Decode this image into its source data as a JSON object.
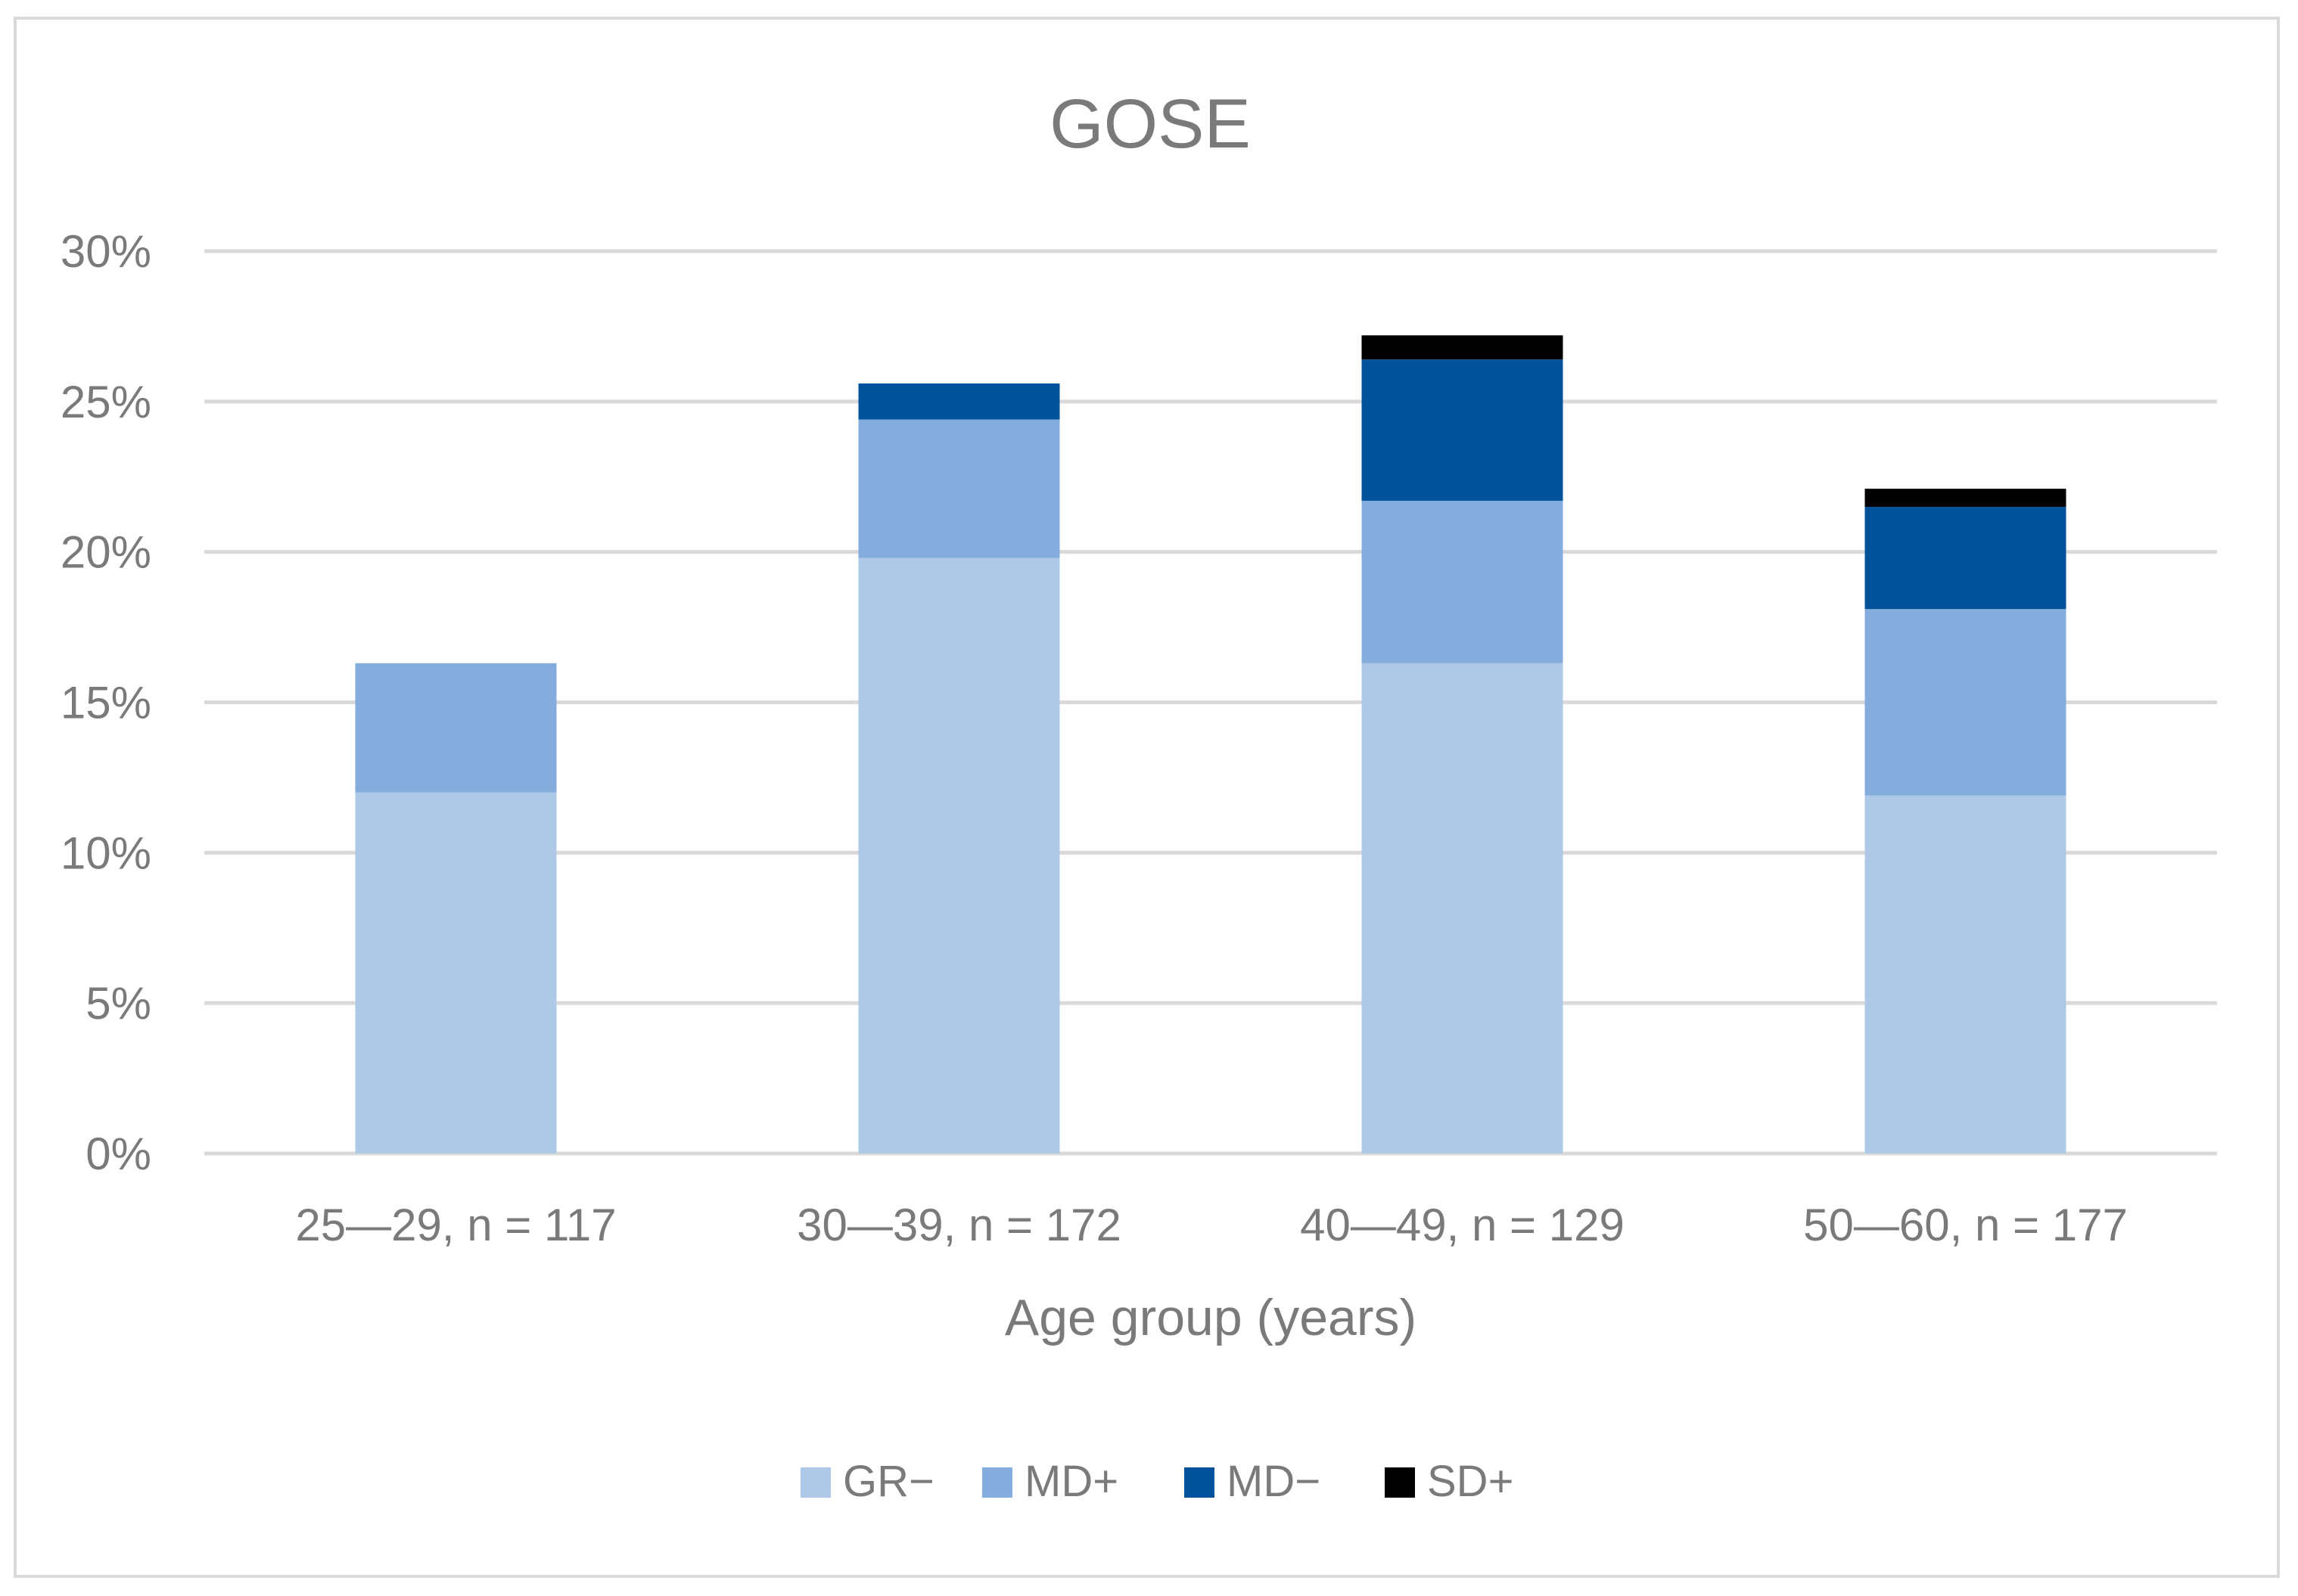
{
  "chart_data": {
    "type": "stacked-bar",
    "title": "GOSE",
    "xlabel": "Age group (years)",
    "ylabel": "",
    "ylim": [
      0,
      30
    ],
    "yticks": [
      0,
      5,
      10,
      15,
      20,
      25,
      30
    ],
    "ytick_labels": [
      "0%",
      "5%",
      "10%",
      "15%",
      "20%",
      "25%",
      "30%"
    ],
    "categories": [
      "25—29, n = 117",
      "30—39, n = 172",
      "40—49, n = 129",
      "50—60, n = 177"
    ],
    "series": [
      {
        "name": "GR−",
        "color": "#aec8e8",
        "values": [
          12.0,
          19.8,
          16.3,
          11.9
        ]
      },
      {
        "name": "MD+",
        "color": "#84acdd",
        "values": [
          4.3,
          4.6,
          5.4,
          6.2
        ]
      },
      {
        "name": "MD−",
        "color": "#00529b",
        "values": [
          0.0,
          1.2,
          4.7,
          3.4
        ]
      },
      {
        "name": "SD+",
        "color": "#000000",
        "values": [
          0.0,
          0.0,
          0.8,
          0.6
        ]
      }
    ],
    "grid": true,
    "legend": "bottom"
  }
}
